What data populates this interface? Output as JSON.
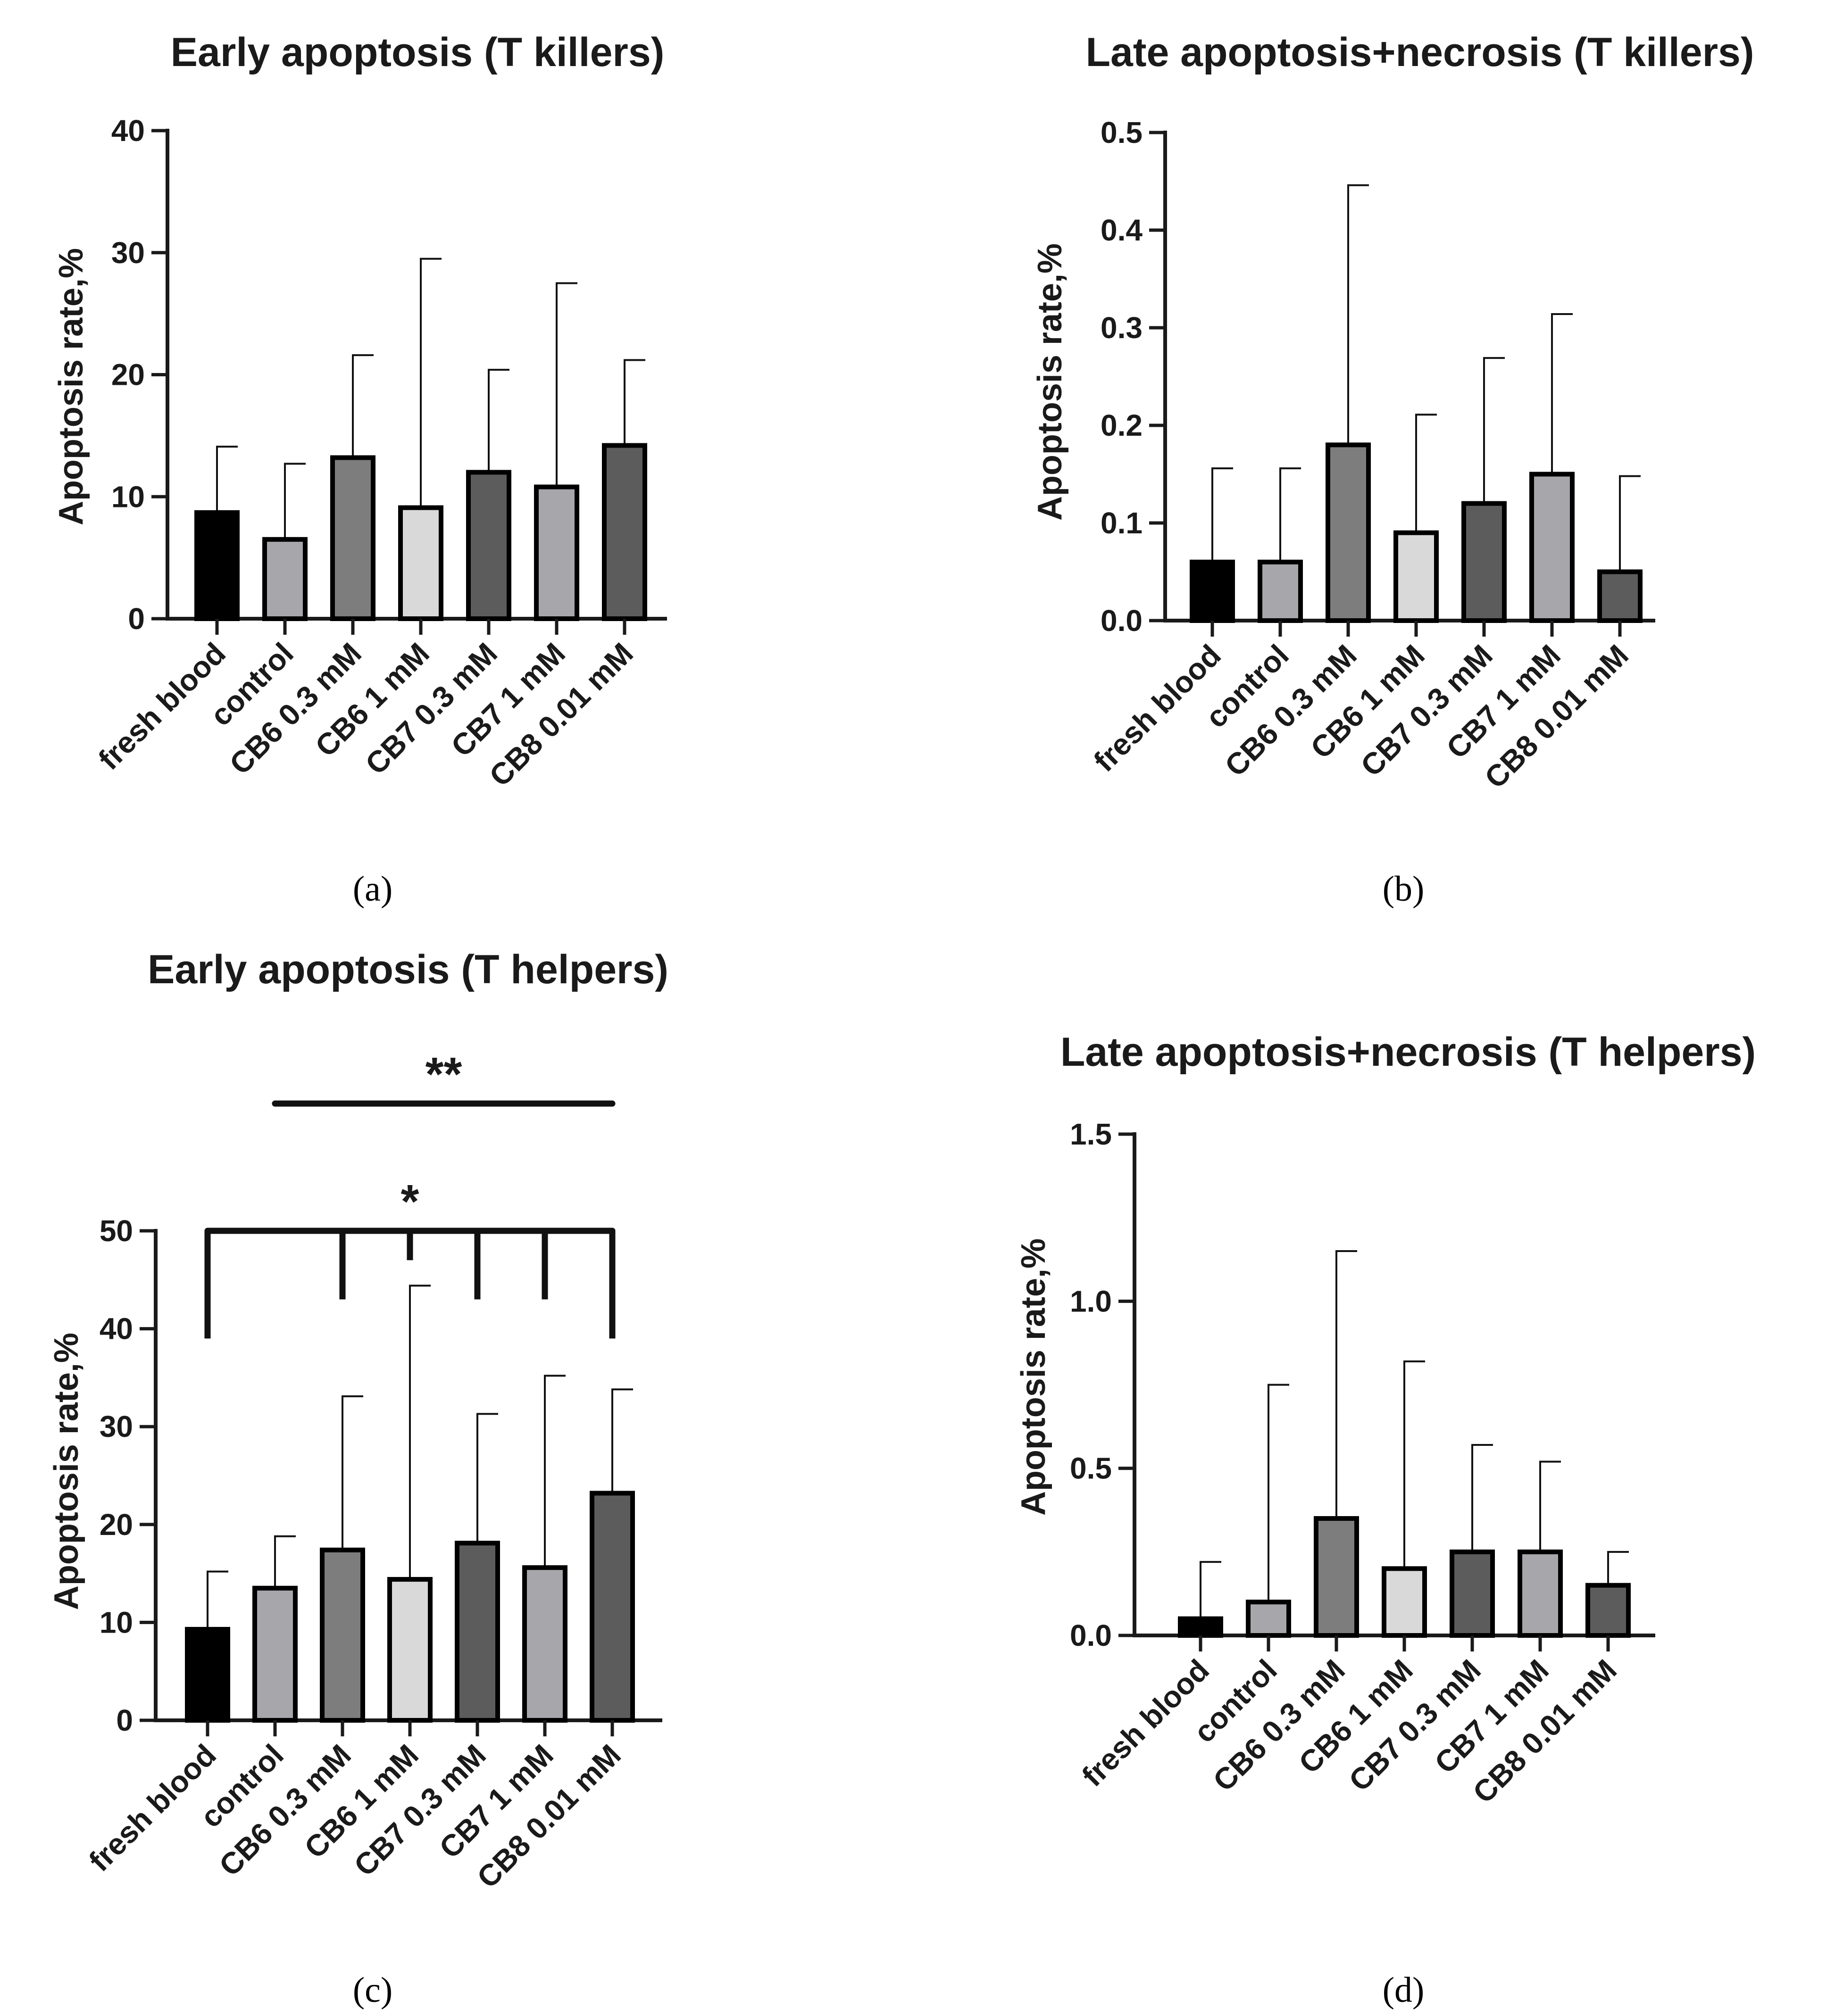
{
  "figure": {
    "colors": {
      "axis": "#1a1a1a",
      "bar_outline": "#000000",
      "bars": [
        "#000000",
        "#a6a6ab",
        "#7d7d7d",
        "#d9d9d9",
        "#5c5c5c",
        "#a6a6ab",
        "#5c5c5c"
      ]
    }
  },
  "chart_data": [
    {
      "panel": "a",
      "panel_label": "(a)",
      "type": "bar",
      "title": "Early apoptosis (T killers)",
      "xlabel": "",
      "ylabel": "Apoptosis rate,%",
      "ylim": [
        0,
        40
      ],
      "yticks": [
        0,
        10,
        20,
        30,
        40
      ],
      "ytick_labels": [
        "0",
        "10",
        "20",
        "30",
        "40"
      ],
      "categories": [
        "fresh blood",
        "control",
        "CB6 0.3 mM",
        "CB6 1 mM",
        "CB7 0.3 mM",
        "CB7 1 mM",
        "CB8 0.01 mM"
      ],
      "values": [
        8.7,
        6.5,
        13.2,
        9.1,
        12.0,
        10.8,
        14.2
      ],
      "errors": [
        5.4,
        6.2,
        8.4,
        20.4,
        8.4,
        16.7,
        7.0
      ],
      "significance": []
    },
    {
      "panel": "b",
      "panel_label": "(b)",
      "type": "bar",
      "title": "Late apoptosis+necrosis (T killers)",
      "xlabel": "",
      "ylabel": "Apoptosis rate,%",
      "ylim": [
        0,
        0.5
      ],
      "yticks": [
        0,
        0.1,
        0.2,
        0.3,
        0.4,
        0.5
      ],
      "ytick_labels": [
        "0.0",
        "0.1",
        "0.2",
        "0.3",
        "0.4",
        "0.5"
      ],
      "categories": [
        "fresh blood",
        "control",
        "CB6 0.3 mM",
        "CB6 1 mM",
        "CB7 0.3 mM",
        "CB7 1 mM",
        "CB8 0.01 mM"
      ],
      "values": [
        0.06,
        0.06,
        0.18,
        0.09,
        0.12,
        0.15,
        0.05
      ],
      "errors": [
        0.096,
        0.096,
        0.266,
        0.121,
        0.149,
        0.164,
        0.098
      ],
      "significance": []
    },
    {
      "panel": "c",
      "panel_label": "(c)",
      "type": "bar",
      "title": "Early apoptosis (T helpers)",
      "xlabel": "",
      "ylabel": "Apoptosis rate,%",
      "ylim": [
        0,
        50
      ],
      "yticks": [
        0,
        10,
        20,
        30,
        40,
        50
      ],
      "ytick_labels": [
        "0",
        "10",
        "20",
        "30",
        "40",
        "50"
      ],
      "categories": [
        "fresh blood",
        "control",
        "CB6 0.3 mM",
        "CB6 1 mM",
        "CB7 0.3 mM",
        "CB7 1 mM",
        "CB8 0.01 mM"
      ],
      "values": [
        9.3,
        13.5,
        17.4,
        14.4,
        18.1,
        15.6,
        23.2
      ],
      "errors": [
        5.9,
        5.3,
        15.7,
        30.0,
        13.2,
        19.6,
        10.6
      ],
      "significance": [
        {
          "label": "**",
          "from": 1,
          "to": 6,
          "y": 63,
          "drops": []
        },
        {
          "label": "*",
          "from": 0,
          "to": 6,
          "y": 50,
          "drops": [
            [
              0,
              39
            ],
            [
              2,
              43
            ],
            [
              3,
              47
            ],
            [
              4,
              43
            ],
            [
              5,
              43
            ],
            [
              6,
              39
            ]
          ]
        }
      ]
    },
    {
      "panel": "d",
      "panel_label": "(d)",
      "type": "bar",
      "title": "Late apoptosis+necrosis (T helpers)",
      "xlabel": "",
      "ylabel": "Apoptosis rate,%",
      "ylim": [
        0,
        1.5
      ],
      "yticks": [
        0,
        0.5,
        1.0,
        1.5
      ],
      "ytick_labels": [
        "0.0",
        "0.5",
        "1.0",
        "1.5"
      ],
      "categories": [
        "fresh blood",
        "control",
        "CB6 0.3 mM",
        "CB6 1 mM",
        "CB7 0.3 mM",
        "CB7 1 mM",
        "CB8 0.01 mM"
      ],
      "values": [
        0.05,
        0.1,
        0.35,
        0.2,
        0.25,
        0.25,
        0.15
      ],
      "errors": [
        0.17,
        0.65,
        0.8,
        0.62,
        0.32,
        0.27,
        0.1
      ],
      "significance": []
    }
  ]
}
